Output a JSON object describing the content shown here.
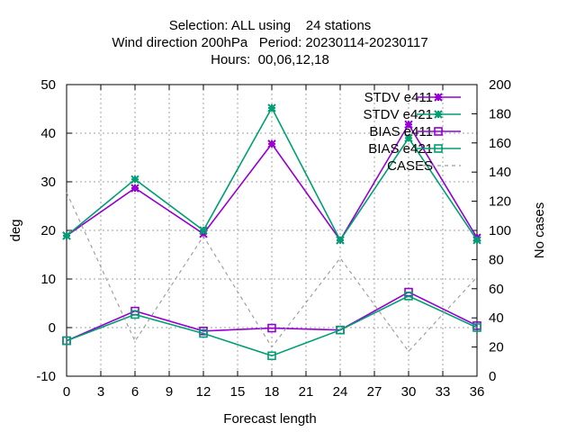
{
  "chart_data": {
    "type": "line",
    "title_lines": [
      "Selection: ALL using    24 stations",
      "Wind direction 200hPa   Period: 20230114-20230117",
      "Hours:  00,06,12,18"
    ],
    "xlabel": "Forecast length",
    "ylabel": "deg",
    "y2label": "No cases",
    "xlim": [
      0,
      36
    ],
    "ylim": [
      -10,
      50
    ],
    "y2lim": [
      0,
      200
    ],
    "x_ticks": [
      "0",
      "3",
      "6",
      "9",
      "12",
      "15",
      "18",
      "21",
      "24",
      "27",
      "30",
      "33",
      "36"
    ],
    "y_ticks": [
      "-10",
      "0",
      "10",
      "20",
      "30",
      "40",
      "50"
    ],
    "y2_ticks": [
      "0",
      "20",
      "40",
      "60",
      "80",
      "100",
      "120",
      "140",
      "160",
      "180",
      "200"
    ],
    "grid": true,
    "legend_position": "top-right",
    "x": [
      0,
      6,
      12,
      18,
      24,
      30,
      36
    ],
    "series": [
      {
        "name": "STDV e411",
        "axis": "y",
        "color": "#9400d3",
        "marker": "star",
        "dash": false,
        "values": [
          18.9,
          28.7,
          19.3,
          37.8,
          18.0,
          41.8,
          18.5
        ]
      },
      {
        "name": "STDV e421",
        "axis": "y",
        "color": "#009e73",
        "marker": "star",
        "dash": false,
        "values": [
          18.9,
          30.5,
          20.0,
          45.2,
          18.0,
          39.0,
          18.0
        ]
      },
      {
        "name": "BIAS e411",
        "axis": "y",
        "color": "#9400d3",
        "marker": "box",
        "dash": false,
        "values": [
          -2.7,
          3.4,
          -0.7,
          -0.1,
          -0.5,
          7.3,
          0.4
        ]
      },
      {
        "name": "BIAS e421",
        "axis": "y",
        "color": "#009e73",
        "marker": "box",
        "dash": false,
        "values": [
          -2.7,
          2.7,
          -1.2,
          -5.8,
          -0.5,
          6.5,
          0.0
        ]
      },
      {
        "name": "CASES",
        "axis": "y2",
        "color": "#a0a0a0",
        "marker": "none",
        "dash": true,
        "values": [
          126,
          24,
          96,
          20,
          81,
          17,
          68
        ]
      }
    ]
  }
}
